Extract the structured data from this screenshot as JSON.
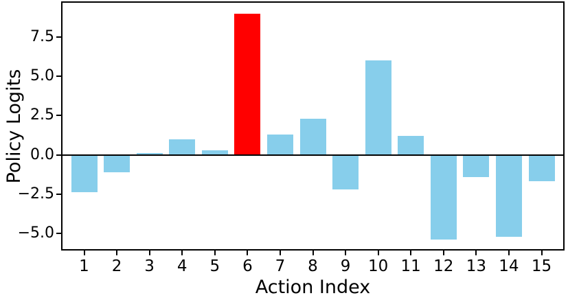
{
  "chart_data": {
    "type": "bar",
    "title": "",
    "xlabel": "Action Index",
    "ylabel": "Policy Logits",
    "categories": [
      "1",
      "2",
      "3",
      "4",
      "5",
      "6",
      "7",
      "8",
      "9",
      "10",
      "11",
      "12",
      "13",
      "14",
      "15"
    ],
    "values": [
      -2.4,
      -1.1,
      0.1,
      1.0,
      0.3,
      9.0,
      1.3,
      2.3,
      -2.2,
      6.0,
      1.2,
      -5.4,
      -1.4,
      -5.2,
      -1.7
    ],
    "highlight_category": "6",
    "colors": {
      "default": "#87CEEB",
      "highlight": "#FF0000",
      "axis": "#000000",
      "background": "#ffffff"
    },
    "ylim": [
      -6.0,
      9.68
    ],
    "yticks": [
      {
        "value": 7.5,
        "label": "7.5"
      },
      {
        "value": 5.0,
        "label": "5.0"
      },
      {
        "value": 2.5,
        "label": "2.5"
      },
      {
        "value": 0.0,
        "label": "0.0"
      },
      {
        "value": -2.5,
        "label": "−2.5"
      },
      {
        "value": -5.0,
        "label": "−5.0"
      }
    ],
    "bar_width_fraction": 0.8,
    "zero_line": true,
    "grid": false,
    "legend": null
  }
}
